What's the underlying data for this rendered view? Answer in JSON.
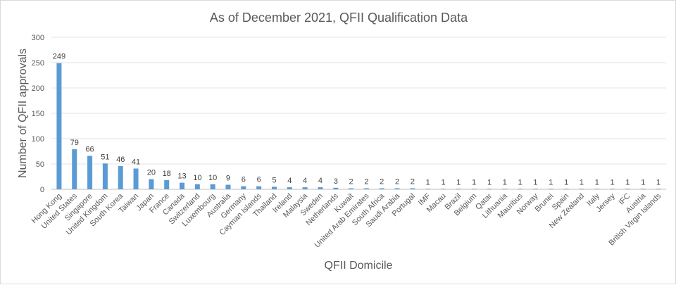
{
  "chart_data": {
    "type": "bar",
    "title": "As of December 2021, QFII Qualification Data",
    "xlabel": "QFII Domicile",
    "ylabel": "Number of QFII approvals",
    "ylim": [
      0,
      300
    ],
    "yticks": [
      0,
      50,
      100,
      150,
      200,
      250,
      300
    ],
    "grid": true,
    "legend": "none",
    "bar_color": "#5b9bd5",
    "categories": [
      "Hong Kong",
      "United States",
      "Singapore",
      "United Kingdom",
      "South Korea",
      "Taiwan",
      "Japan",
      "France",
      "Canada",
      "Switzerland",
      "Luxembourg",
      "Australia",
      "Germany",
      "Cayman Islands",
      "Thailand",
      "Ireland",
      "Malaysia",
      "Sweden",
      "Netherlands",
      "Kuwait",
      "United Arab Emirates",
      "South Africa",
      "Saudi Arabia",
      "Portugal",
      "IMF",
      "Macau",
      "Brazil",
      "Belgium",
      "Qatar",
      "Lithuania",
      "Mauritius",
      "Norway",
      "Brunei",
      "Spain",
      "New Zealand",
      "Italy",
      "Jersey",
      "IFC",
      "Austria",
      "British Virgin Islands"
    ],
    "values": [
      249,
      79,
      66,
      51,
      46,
      41,
      20,
      18,
      13,
      10,
      10,
      9,
      6,
      6,
      5,
      4,
      4,
      4,
      3,
      2,
      2,
      2,
      2,
      2,
      1,
      1,
      1,
      1,
      1,
      1,
      1,
      1,
      1,
      1,
      1,
      1,
      1,
      1,
      1,
      1
    ]
  }
}
